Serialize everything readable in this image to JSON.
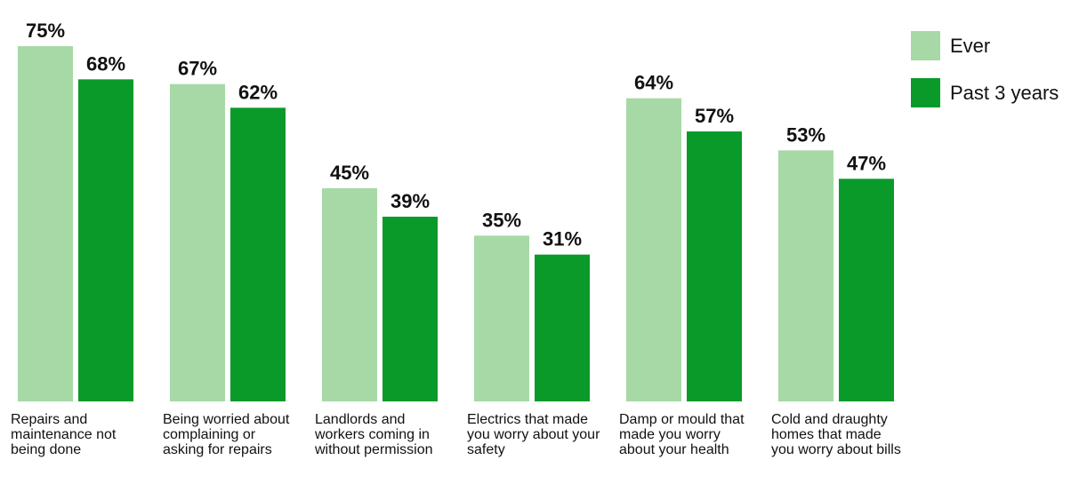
{
  "chart_data": {
    "type": "bar",
    "categories": [
      "Repairs and maintenance not being done",
      "Being worried about complaining or asking for repairs",
      "Landlords and workers coming in without permission",
      "Electrics that made you worry about your safety",
      "Damp or mould that made you worry about your health",
      "Cold and draughty homes that made you worry about bills"
    ],
    "series": [
      {
        "name": "Ever",
        "values": [
          75,
          67,
          45,
          35,
          64,
          53
        ],
        "labels": [
          "75%",
          "67%",
          "45%",
          "35%",
          "64%",
          "53%"
        ],
        "color": "#a6d9a6"
      },
      {
        "name": "Past 3 years",
        "values": [
          68,
          62,
          39,
          31,
          57,
          47
        ],
        "labels": [
          "68%",
          "62%",
          "39%",
          "31%",
          "57%",
          "47%"
        ],
        "color": "#0a9a2a"
      }
    ],
    "ylim": [
      0,
      75
    ],
    "grid": false,
    "legend_position": "top-right"
  }
}
